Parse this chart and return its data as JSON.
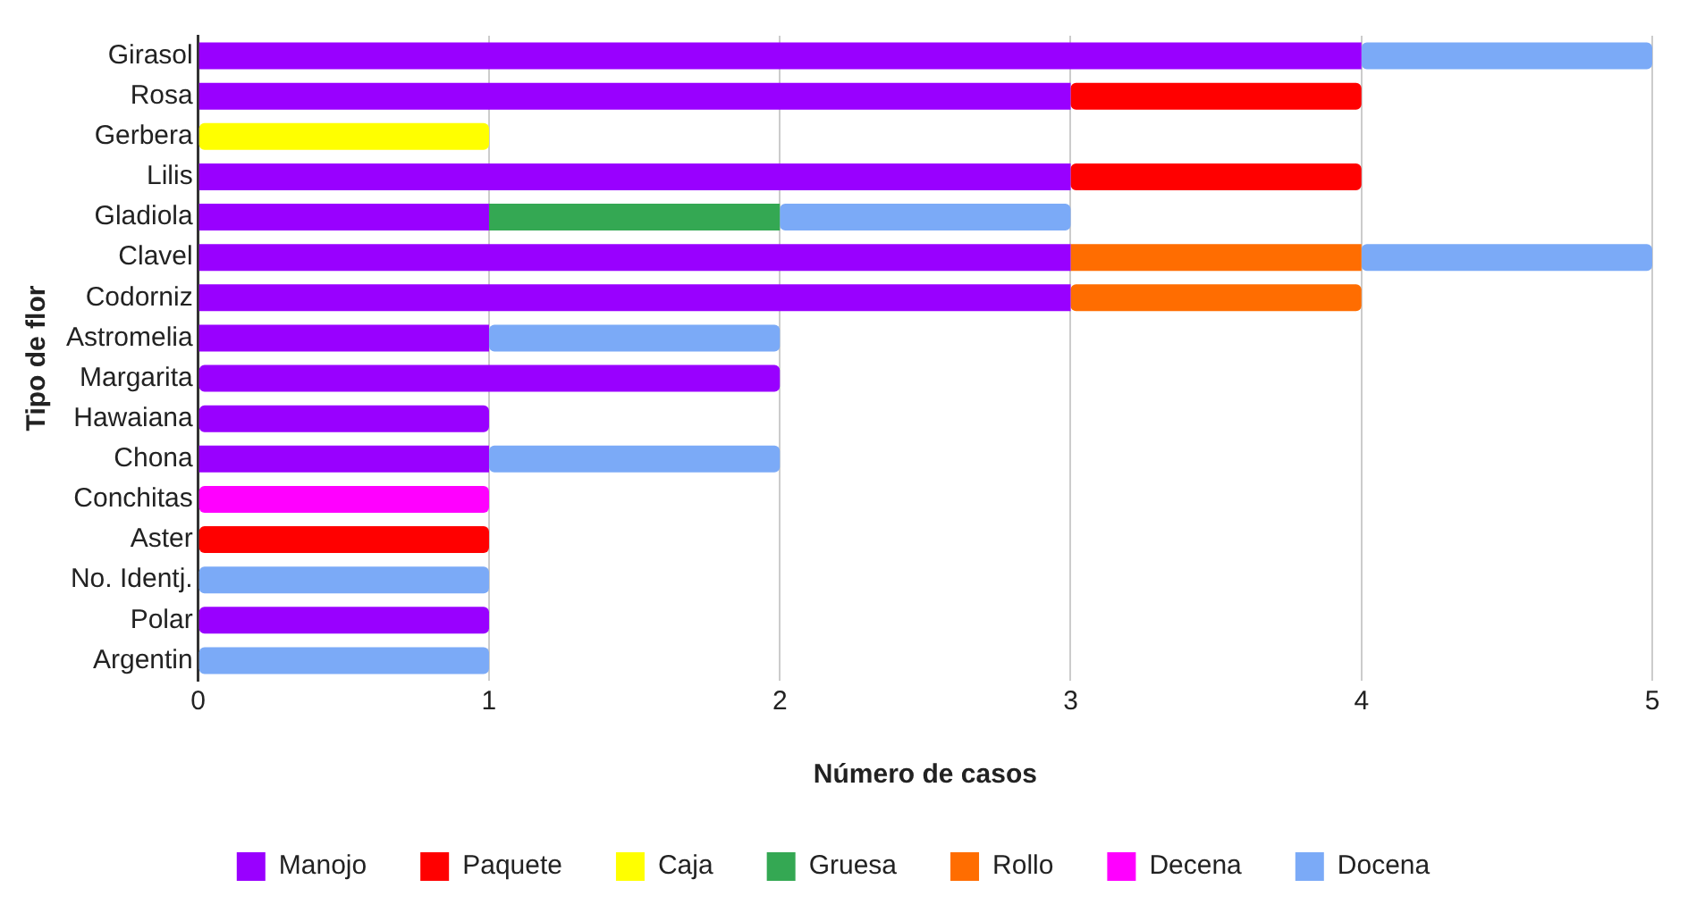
{
  "chart_data": {
    "type": "bar",
    "orientation": "horizontal",
    "stacked": true,
    "xlabel": "Número de casos",
    "ylabel": "Tipo de flor",
    "categories": [
      "Girasol",
      "Rosa",
      "Gerbera",
      "Lilis",
      "Gladiola",
      "Clavel",
      "Codorniz",
      "Astromelia",
      "Margarita",
      "Hawaiana",
      "Chona",
      "Conchitas",
      "Aster",
      "No. Identj.",
      "Polar",
      "Argentin"
    ],
    "series": [
      {
        "name": "Manojo",
        "color": "#9900ff",
        "values": [
          4,
          3,
          null,
          3,
          1,
          3,
          3,
          1,
          2,
          1,
          1,
          null,
          null,
          null,
          1,
          null
        ]
      },
      {
        "name": "Paquete",
        "color": "#ff0000",
        "values": [
          null,
          1,
          null,
          1,
          null,
          null,
          null,
          null,
          null,
          null,
          null,
          null,
          1,
          null,
          null,
          null
        ]
      },
      {
        "name": "Caja",
        "color": "#ffff00",
        "values": [
          null,
          null,
          1,
          null,
          null,
          null,
          null,
          null,
          null,
          null,
          null,
          null,
          null,
          null,
          null,
          null
        ]
      },
      {
        "name": "Gruesa",
        "color": "#34a853",
        "values": [
          null,
          null,
          null,
          null,
          1,
          null,
          null,
          null,
          null,
          null,
          null,
          null,
          null,
          null,
          null,
          null
        ]
      },
      {
        "name": "Rollo",
        "color": "#ff6d01",
        "values": [
          null,
          null,
          null,
          null,
          null,
          1,
          1,
          null,
          null,
          null,
          null,
          null,
          null,
          null,
          null,
          null
        ]
      },
      {
        "name": "Decena",
        "color": "#ff00ff",
        "values": [
          null,
          null,
          null,
          null,
          null,
          null,
          null,
          null,
          null,
          null,
          null,
          1,
          null,
          null,
          null,
          null
        ]
      },
      {
        "name": "Docena",
        "color": "#7baaf7",
        "values": [
          1,
          null,
          null,
          null,
          1,
          1,
          null,
          1,
          null,
          null,
          1,
          null,
          null,
          1,
          null,
          1
        ]
      }
    ],
    "xlim": [
      0,
      5
    ],
    "xticks": [
      0,
      1,
      2,
      3,
      4,
      5
    ],
    "grid": "x",
    "legend": "bottom"
  }
}
